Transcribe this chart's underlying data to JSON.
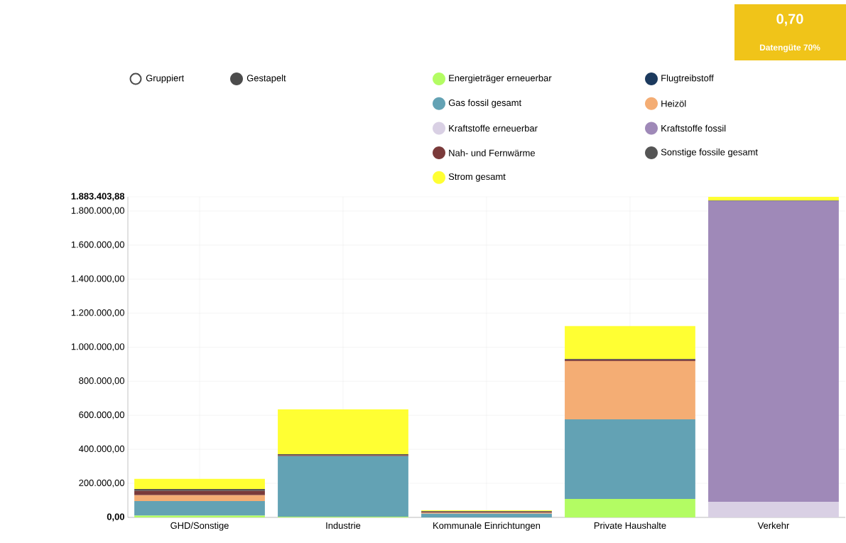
{
  "chart_data": {
    "type": "bar",
    "stacked": true,
    "grid": true,
    "legend": "top",
    "categories": [
      "GHD/Sonstige",
      "Industrie",
      "Kommunale Einrichtungen",
      "Private Haushalte",
      "Verkehr"
    ],
    "ylim": [
      0,
      1883403.88
    ],
    "yticks": [
      {
        "value": 0,
        "label": "0,00"
      },
      {
        "value": 200000,
        "label": "200.000,00"
      },
      {
        "value": 400000,
        "label": "400.000,00"
      },
      {
        "value": 600000,
        "label": "600.000,00"
      },
      {
        "value": 800000,
        "label": "800.000,00"
      },
      {
        "value": 1000000,
        "label": "1.000.000,00"
      },
      {
        "value": 1200000,
        "label": "1.200.000,00"
      },
      {
        "value": 1400000,
        "label": "1.400.000,00"
      },
      {
        "value": 1600000,
        "label": "1.600.000,00"
      },
      {
        "value": 1800000,
        "label": "1.800.000,00"
      },
      {
        "value": 1883403.88,
        "label": "1.883.403,88"
      }
    ],
    "series": [
      {
        "name": "Energieträger erneuerbar",
        "color": "#b3fc63",
        "values": [
          10000,
          4000,
          null,
          108000,
          0
        ]
      },
      {
        "name": "Flugtreibstoff",
        "color": "#1c3a5e",
        "values": [
          0,
          0,
          0,
          0,
          0
        ]
      },
      {
        "name": "Gas fossil gesamt",
        "color": "#63a2b4",
        "values": [
          86000,
          356000,
          22000,
          468000,
          0
        ]
      },
      {
        "name": "Heizöl",
        "color": "#f4ad74",
        "values": [
          34000,
          0,
          5000,
          343000,
          0
        ]
      },
      {
        "name": "Kraftstoffe erneuerbar",
        "color": "#d9d0e4",
        "values": [
          0,
          0,
          0,
          0,
          92000
        ]
      },
      {
        "name": "Kraftstoffe fossil",
        "color": "#9f89b8",
        "values": [
          0,
          0,
          0,
          0,
          1767000
        ]
      },
      {
        "name": "Nah- und Fernwärme",
        "color": "#7a3a3a",
        "values": [
          25000,
          6000,
          6000,
          7000,
          0
        ]
      },
      {
        "name": "Sonstige fossile gesamt",
        "color": "#555555",
        "values": [
          12000,
          6000,
          3000,
          5000,
          3000
        ]
      },
      {
        "name": "Strom gesamt",
        "color": "#ffff33",
        "values": [
          59000,
          263000,
          6000,
          193000,
          21000
        ]
      }
    ],
    "annotations": [
      "Gruppiert",
      "Gestapelt",
      "0,70",
      "Datengüte 70%"
    ]
  }
}
